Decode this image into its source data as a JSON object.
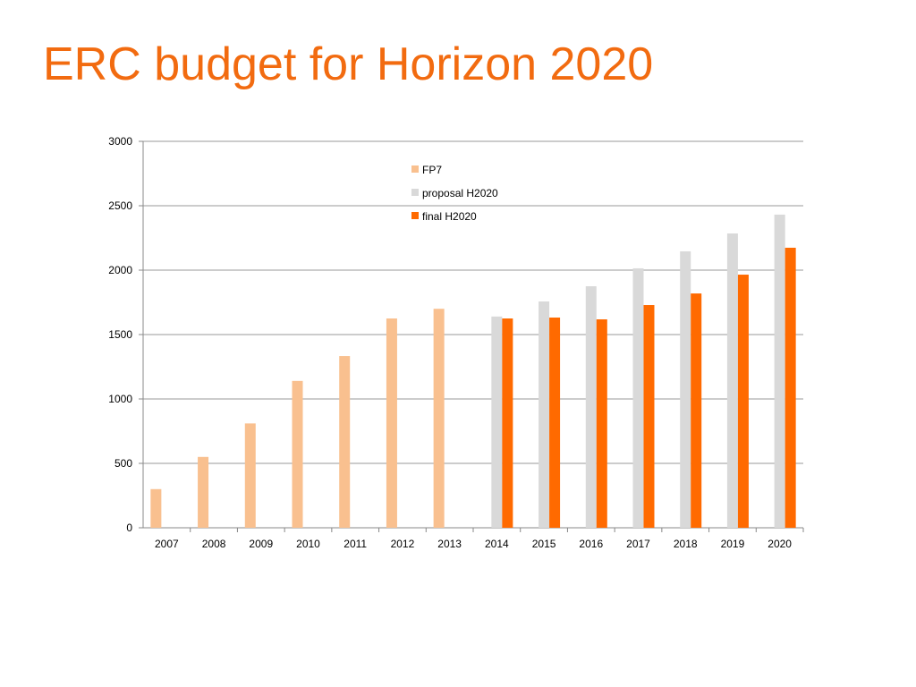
{
  "title": "ERC budget for Horizon 2020",
  "chart_data": {
    "type": "bar",
    "title": "ERC budget for Horizon 2020",
    "xlabel": "",
    "ylabel": "",
    "ylim": [
      0,
      3000
    ],
    "yticks": [
      0,
      500,
      1000,
      1500,
      2000,
      2500,
      3000
    ],
    "grid": true,
    "legend_position": "top-center",
    "categories": [
      "2007",
      "2008",
      "2009",
      "2010",
      "2011",
      "2012",
      "2013",
      "2014",
      "2015",
      "2016",
      "2017",
      "2018",
      "2019",
      "2020"
    ],
    "series": [
      {
        "name": "FP7",
        "color": "#F9C08F",
        "values": [
          300,
          550,
          810,
          1140,
          1333,
          1625,
          1700,
          null,
          null,
          null,
          null,
          null,
          null,
          null
        ]
      },
      {
        "name": "proposal H2020",
        "color": "#D9D9D9",
        "values": [
          null,
          null,
          null,
          null,
          null,
          null,
          null,
          1640,
          1757,
          1875,
          2014,
          2146,
          2285,
          2431
        ]
      },
      {
        "name": "final H2020",
        "color": "#FF6A00",
        "values": [
          null,
          null,
          null,
          null,
          null,
          null,
          null,
          1625,
          1632,
          1618,
          1729,
          1819,
          1965,
          2174
        ]
      }
    ]
  }
}
